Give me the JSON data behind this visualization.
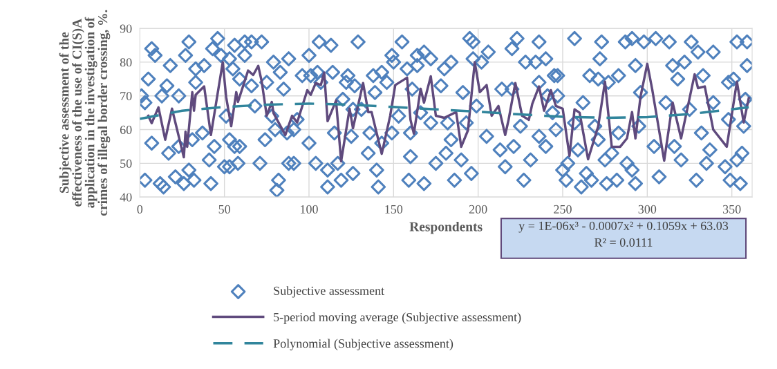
{
  "chart_data": {
    "type": "scatter",
    "xlabel": "Respondents",
    "ylabel": "Subjective assessment of the\neffectiveness of the use of CI(S)A\napplication in the investigation of\ncrimes of illegal border crossing, %.",
    "xlim": [
      0,
      362
    ],
    "xticks": [
      0,
      50,
      100,
      150,
      200,
      250,
      300,
      350
    ],
    "ylim": [
      40,
      90
    ],
    "yticks": [
      40,
      50,
      60,
      70,
      80,
      90
    ],
    "grid": true,
    "legend": "bottom",
    "annotations": [
      "y = 1E-06x³ - 0.0007x² + 0.1059x + 63.03",
      "R² = 0.0111"
    ],
    "series": [
      {
        "name": "Subjective assessment",
        "type": "scatter",
        "marker": "diamond",
        "color": "#4f81bd",
        "x": [
          7,
          9,
          5,
          1,
          3,
          7,
          3,
          12,
          14,
          18,
          16,
          13,
          23,
          17,
          21,
          26,
          29,
          27,
          33,
          38,
          33,
          37,
          23,
          31,
          29,
          32,
          42,
          41,
          44,
          46,
          43,
          48,
          53,
          56,
          62,
          66,
          72,
          62,
          55,
          59,
          66,
          51,
          53,
          56,
          59,
          53,
          58,
          50,
          68,
          75,
          79,
          83,
          85,
          88,
          78,
          80,
          87,
          91,
          93,
          74,
          71,
          88,
          91,
          82,
          81,
          100,
          106,
          113,
          101,
          105,
          114,
          96,
          107,
          120,
          122,
          115,
          100,
          111,
          104,
          117,
          111,
          119,
          129,
          155,
          123,
          127,
          138,
          143,
          149,
          150,
          139,
          146,
          158,
          164,
          168,
          172,
          164,
          161,
          178,
          184,
          195,
          197,
          197,
          202,
          206,
          180,
          191,
          199,
          126,
          131,
          125,
          136,
          149,
          143,
          135,
          153,
          160,
          166,
          172,
          182,
          184,
          193,
          160,
          175,
          181,
          190,
          126,
          140,
          141,
          159,
          168,
          186,
          196,
          223,
          220,
          236,
          228,
          234,
          240,
          214,
          220,
          236,
          241,
          205,
          213,
          221,
          225,
          236,
          240,
          216,
          231,
          227,
          244,
          245,
          257,
          273,
          272,
          287,
          291,
          298,
          305,
          313,
          326,
          330,
          339,
          353,
          359,
          359,
          247,
          266,
          271,
          277,
          283,
          293,
          318,
          322,
          315,
          333,
          348,
          351,
          247,
          262,
          296,
          311,
          325,
          339,
          358,
          246,
          257,
          269,
          283,
          295,
          332,
          348,
          357,
          259,
          271,
          279,
          304,
          316,
          337,
          356,
          250,
          253,
          264,
          275,
          288,
          291,
          320,
          335,
          346,
          353,
          252,
          261,
          267,
          276,
          282,
          293,
          307,
          329,
          349,
          355
        ],
        "values": [
          84,
          82,
          75,
          70,
          68,
          56,
          45,
          44,
          43,
          79,
          73,
          70,
          70,
          53,
          46,
          44,
          86,
          82,
          78,
          79,
          74,
          59,
          55,
          57,
          48,
          45,
          44,
          51,
          55,
          87,
          84,
          82,
          81,
          85,
          86,
          86,
          86,
          82,
          78,
          75,
          73,
          64,
          57,
          55,
          55,
          49,
          50,
          49,
          67,
          74,
          80,
          77,
          72,
          81,
          64,
          60,
          59,
          60,
          63,
          57,
          50,
          50,
          50,
          45,
          42,
          82,
          86,
          85,
          76,
          77,
          77,
          76,
          74,
          69,
          74,
          59,
          56,
          48,
          50,
          50,
          43,
          45,
          86,
          86,
          76,
          73,
          76,
          77,
          82,
          80,
          71,
          74,
          78,
          82,
          83,
          81,
          79,
          72,
          73,
          80,
          87,
          86,
          81,
          80,
          83,
          78,
          71,
          67,
          66,
          66,
          58,
          59,
          59,
          56,
          53,
          64,
          59,
          65,
          62,
          62,
          57,
          62,
          52,
          50,
          53,
          51,
          47,
          48,
          43,
          45,
          44,
          45,
          47,
          87,
          84,
          86,
          80,
          80,
          81,
          72,
          72,
          74,
          70,
          58,
          54,
          55,
          61,
          58,
          55,
          49,
          51,
          45,
          65,
          76,
          87,
          86,
          81,
          86,
          87,
          86,
          87,
          86,
          86,
          83,
          83,
          86,
          86,
          79,
          76,
          76,
          75,
          74,
          76,
          79,
          75,
          80,
          79,
          76,
          74,
          75,
          70,
          68,
          71,
          68,
          66,
          68,
          69,
          60,
          62,
          61,
          59,
          61,
          59,
          63,
          61,
          54,
          57,
          53,
          55,
          55,
          54,
          53,
          48,
          50,
          47,
          51,
          50,
          48,
          51,
          50,
          49,
          51,
          45,
          43,
          45,
          44,
          45,
          44,
          46,
          45,
          45,
          44
        ]
      },
      {
        "name": "5-period moving average (Subjective assessment)",
        "type": "line",
        "marker": "none",
        "line_style": "solid",
        "color": "#5f4a7d",
        "x": [
          5,
          7,
          11,
          15,
          19,
          26,
          27,
          28,
          31,
          32,
          33,
          38,
          42,
          49,
          51,
          54,
          57,
          58,
          64,
          67,
          70,
          72,
          75,
          78,
          79,
          86,
          90,
          93,
          99,
          101,
          104,
          107,
          109,
          111,
          116,
          119,
          124,
          126,
          132,
          135,
          137,
          143,
          148,
          151,
          158,
          160,
          162,
          166,
          168,
          172,
          175,
          180,
          187,
          190,
          194,
          198,
          201,
          205,
          208,
          212,
          216,
          218,
          222,
          226,
          230,
          232,
          236,
          239,
          243,
          246,
          250,
          254,
          257,
          260,
          265,
          271,
          275,
          279,
          284,
          288,
          291,
          293,
          296,
          300,
          303,
          310,
          315,
          320,
          328,
          330,
          334,
          339,
          347,
          353,
          357,
          360
        ],
        "values": [
          64.1,
          61.9,
          66.6,
          57,
          66.2,
          51.8,
          59.4,
          54.9,
          71.1,
          65.6,
          70.3,
          72.8,
          58.4,
          80,
          69.7,
          61,
          71.1,
          68.2,
          77.5,
          76.2,
          78.9,
          74.4,
          64.1,
          68.2,
          64.9,
          58.4,
          64.1,
          62.1,
          71.7,
          70.3,
          73.8,
          73.2,
          76.9,
          62.5,
          68.6,
          50.6,
          66.2,
          60.4,
          73.8,
          65.2,
          65.2,
          52.8,
          64.1,
          73.2,
          75.4,
          62.9,
          58.8,
          72.1,
          68,
          75.8,
          64.1,
          63.5,
          65.2,
          54.9,
          59.8,
          80,
          71.1,
          73.2,
          64.1,
          67,
          58.4,
          62.9,
          73.8,
          64.1,
          62.9,
          67.6,
          72.8,
          65.6,
          71.7,
          67,
          66.2,
          52.2,
          66,
          65,
          51.2,
          61,
          74.2,
          54.9,
          54.9,
          57.4,
          65.2,
          57.4,
          69.7,
          79.5,
          71.7,
          50.8,
          68,
          57.4,
          76.4,
          72.3,
          72.8,
          60,
          54.9,
          74.2,
          62.1,
          69.3
        ]
      },
      {
        "name": "Polynomial (Subjective assessment)",
        "type": "line",
        "marker": "none",
        "line_style": "dashed",
        "color": "#31859c",
        "x": [
          0,
          25,
          50,
          75,
          100,
          125,
          150,
          175,
          200,
          225,
          250,
          275,
          300,
          325,
          360
        ],
        "values": [
          63.2,
          65.6,
          66.7,
          67.4,
          67.7,
          67.4,
          66.7,
          66.0,
          65.3,
          64.5,
          63.8,
          63.5,
          63.7,
          64.6,
          66.6
        ]
      }
    ]
  }
}
